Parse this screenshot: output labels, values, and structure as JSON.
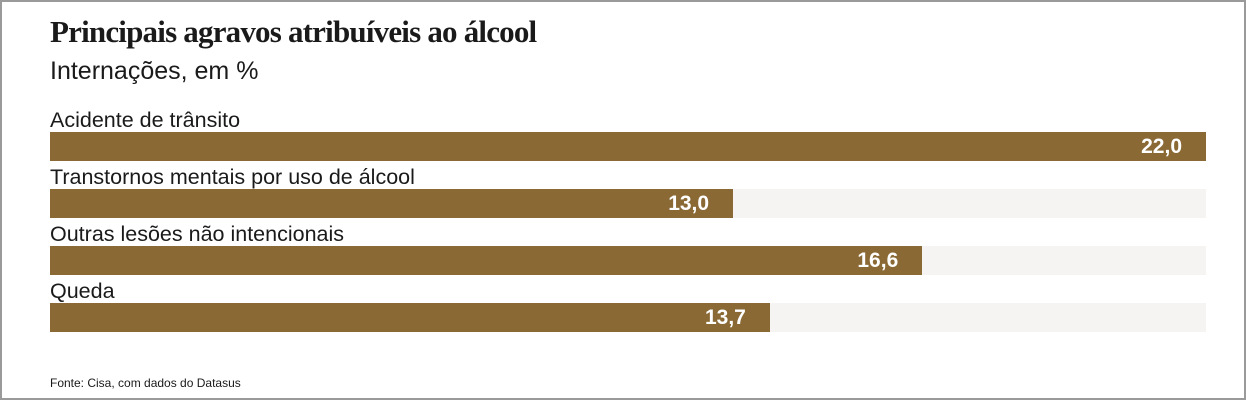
{
  "chart_data": {
    "type": "bar",
    "orientation": "horizontal",
    "title": "Principais agravos atribuíveis ao álcool",
    "subtitle": "Internações, em %",
    "categories": [
      "Acidente de trânsito",
      "Transtornos mentais por uso de álcool",
      "Outras lesões não intencionais",
      "Queda"
    ],
    "values": [
      22.0,
      13.0,
      16.6,
      13.7
    ],
    "value_labels": [
      "22,0",
      "13,0",
      "16,6",
      "13,7"
    ],
    "xlim": [
      0,
      22.0
    ],
    "bar_color": "#8a6934",
    "track_color": "#f5f4f2",
    "grid": false
  },
  "source": "Fonte: Cisa, com dados do Datasus"
}
